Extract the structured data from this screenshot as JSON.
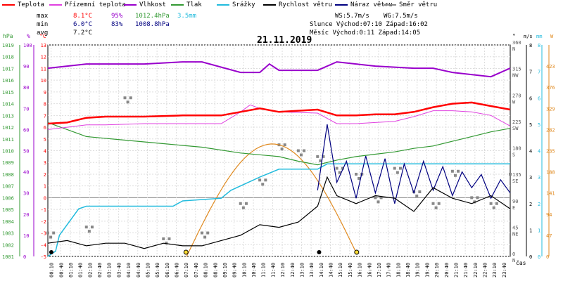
{
  "legend": [
    {
      "label": "Teplota",
      "color": "#ff0000"
    },
    {
      "label": "Přízemní teplota",
      "color": "#e040e0"
    },
    {
      "label": "Vlhkost",
      "color": "#9900cc"
    },
    {
      "label": "Tlak",
      "color": "#339933"
    },
    {
      "label": "Srážky",
      "color": "#22bbdd"
    },
    {
      "label": "Rychlost větru",
      "color": "#000000"
    },
    {
      "label": "Náraz větru",
      "color": "#000080"
    },
    {
      "label": "Směr větru",
      "color": "#888888"
    }
  ],
  "stats": {
    "max_label": "max",
    "max_temp": "8.1°C",
    "max_hum": "95%",
    "max_press": "1012.4hPa",
    "max_rain": "3.5mm",
    "min_label": "min",
    "min_temp": "6.0°C",
    "min_hum": "83%",
    "min_press": "1008.8hPa",
    "avg_label": "avg",
    "avg_temp": "7.2°C",
    "ws": "WS:5.7m/s",
    "wg": "WG:7.5m/s",
    "sun": "Slunce Východ:07:10  Západ:16:02",
    "moon": "Měsíc  Východ:0:11  Západ:14:05"
  },
  "colors": {
    "temp": "#ff0000",
    "feel": "#e040e0",
    "hum": "#9900cc",
    "press": "#339933",
    "rain": "#22bbdd",
    "wind": "#000000",
    "gust": "#000080",
    "dir": "#888888",
    "sun": "#e08a20"
  },
  "chart_data": {
    "type": "line",
    "title": "21.11.2019",
    "x_unit": "čas",
    "x_ticks": [
      "00:10",
      "00:40",
      "01:10",
      "01:40",
      "02:10",
      "02:40",
      "03:10",
      "03:40",
      "04:10",
      "04:40",
      "05:10",
      "05:40",
      "06:10",
      "06:40",
      "07:10",
      "07:40",
      "08:10",
      "08:40",
      "09:10",
      "09:40",
      "10:10",
      "10:40",
      "11:10",
      "11:40",
      "12:10",
      "12:40",
      "13:10",
      "13:40",
      "14:10",
      "14:40",
      "15:10",
      "15:40",
      "16:10",
      "16:40",
      "17:10",
      "17:40",
      "18:10",
      "18:40",
      "19:10",
      "19:40",
      "20:10",
      "20:40",
      "21:10",
      "21:40",
      "22:10",
      "22:40",
      "23:10",
      "23:40"
    ],
    "axes": {
      "pressure_hpa": {
        "label": "hPa",
        "ticks": [
          "1001",
          "1002",
          "1003",
          "1004",
          "1005",
          "1006",
          "1007",
          "1008",
          "1009",
          "1010",
          "1011",
          "1012",
          "1013",
          "1014",
          "1015",
          "1016",
          "1017",
          "1018",
          "1019"
        ]
      },
      "humidity_pct": {
        "label": "%",
        "ticks": [
          "0",
          "10",
          "20",
          "30",
          "40",
          "50",
          "60",
          "70",
          "80",
          "90",
          "100"
        ]
      },
      "temp_c": {
        "label": "°C",
        "ticks": [
          "-5",
          "-4",
          "-3",
          "-2",
          "-1",
          "0",
          "1",
          "2",
          "3",
          "4",
          "5",
          "6",
          "7",
          "8",
          "9",
          "10",
          "11",
          "12",
          "13"
        ]
      },
      "wind_dir_deg": {
        "label": "°",
        "ticks": [
          "0 N",
          "45 NE",
          "90 E",
          "135 SE",
          "180 S",
          "225 SW",
          "270 W",
          "315 NW",
          "360 N"
        ]
      },
      "wind_ms": {
        "label": "m/s",
        "ticks": [
          "0",
          "1",
          "2",
          "3",
          "4",
          "5",
          "6",
          "7",
          "8"
        ]
      },
      "rain_mm": {
        "label": "mm",
        "ticks": [
          "0",
          "1",
          "2",
          "3",
          "4",
          "5",
          "6",
          "7",
          "8"
        ]
      },
      "solar": {
        "label": "W",
        "ticks": [
          "0",
          "47",
          "94",
          "141",
          "188",
          "235",
          "282",
          "329",
          "376",
          "423"
        ]
      }
    },
    "series": [
      {
        "name": "Teplota",
        "unit": "°C",
        "x": [
          0,
          1,
          1.5,
          2,
          3,
          5,
          7,
          9,
          10,
          11,
          12,
          14,
          15,
          16,
          17,
          18,
          19,
          20,
          21,
          22,
          23,
          24
        ],
        "y": [
          6.3,
          6.4,
          6.6,
          6.8,
          6.9,
          6.9,
          7.0,
          7.0,
          7.3,
          7.6,
          7.3,
          7.5,
          7.0,
          7.0,
          7.1,
          7.1,
          7.3,
          7.7,
          8.0,
          8.1,
          7.8,
          7.5
        ]
      },
      {
        "name": "Přízemní teplota",
        "unit": "°C",
        "x": [
          0,
          1,
          2,
          3,
          5,
          7,
          9,
          10,
          10.5,
          11,
          12,
          14,
          15,
          16,
          17,
          18,
          19,
          20,
          21,
          22,
          23,
          24
        ],
        "y": [
          5.8,
          6.0,
          6.2,
          6.2,
          6.3,
          6.3,
          6.3,
          7.3,
          7.9,
          7.6,
          7.3,
          7.2,
          6.3,
          6.3,
          6.4,
          6.5,
          6.9,
          7.4,
          7.4,
          7.3,
          7.0,
          6.1
        ]
      },
      {
        "name": "Vlhkost",
        "unit": "%",
        "x": [
          0,
          1,
          2,
          5,
          7,
          8,
          10,
          11,
          11.5,
          12,
          14,
          15,
          16,
          17,
          19,
          20,
          21,
          23,
          24
        ],
        "y": [
          89,
          90,
          91,
          91,
          92,
          92,
          87,
          87,
          91,
          88,
          88,
          92,
          91,
          90,
          89,
          89,
          87,
          85,
          89
        ]
      },
      {
        "name": "Tlak",
        "unit": "hPa",
        "x": [
          0,
          1,
          2,
          4,
          6,
          8,
          10,
          12,
          13,
          14,
          15,
          16,
          17,
          18,
          19,
          20,
          21,
          22,
          23,
          24
        ],
        "y": [
          1012.4,
          1011.8,
          1011.2,
          1010.9,
          1010.6,
          1010.3,
          1009.8,
          1009.5,
          1009.1,
          1008.8,
          1009.2,
          1009.5,
          1009.7,
          1009.9,
          1010.2,
          1010.4,
          1010.8,
          1011.2,
          1011.6,
          1011.9
        ]
      },
      {
        "name": "Srážky",
        "unit": "mm",
        "x": [
          0,
          0.4,
          0.6,
          1.6,
          2,
          6.5,
          7,
          9,
          9.5,
          11,
          12,
          14,
          14.5,
          24
        ],
        "y": [
          0,
          0.2,
          0.8,
          1.8,
          1.9,
          1.9,
          2.1,
          2.2,
          2.5,
          3.0,
          3.3,
          3.3,
          3.5,
          3.5
        ]
      },
      {
        "name": "Rychlost větru",
        "unit": "m/s",
        "x": [
          0,
          1,
          2,
          3,
          4,
          5,
          6,
          7,
          8,
          9,
          10,
          11,
          12,
          13,
          14,
          14.5,
          15,
          16,
          17,
          18,
          19,
          20,
          21,
          22,
          23,
          24
        ],
        "y": [
          0.5,
          0.6,
          0.4,
          0.5,
          0.5,
          0.3,
          0.5,
          0.4,
          0.4,
          0.6,
          0.8,
          1.2,
          1.1,
          1.3,
          1.9,
          3.0,
          2.3,
          2.0,
          2.3,
          2.2,
          1.7,
          2.6,
          2.2,
          2.0,
          2.3,
          1.8
        ]
      },
      {
        "name": "Náraz větru",
        "unit": "m/s",
        "x": [
          14,
          14.5,
          15,
          15.5,
          16,
          16.5,
          17,
          17.5,
          18,
          18.5,
          19,
          19.5,
          20,
          20.5,
          21,
          21.5,
          22,
          22.5,
          23,
          23.5,
          24
        ],
        "y": [
          2.5,
          5.0,
          2.8,
          3.6,
          2.2,
          3.8,
          2.4,
          3.7,
          2.0,
          3.5,
          2.4,
          3.6,
          2.5,
          3.4,
          2.3,
          3.2,
          2.6,
          3.1,
          2.2,
          2.9,
          2.4
        ]
      },
      {
        "name": "Směr větru",
        "unit": "°",
        "x": [
          0,
          2,
          4,
          6,
          8,
          10,
          11,
          12,
          13,
          14,
          15,
          16,
          17,
          18,
          19,
          20,
          21,
          22,
          23,
          24
        ],
        "y": [
          40,
          50,
          270,
          30,
          40,
          90,
          130,
          190,
          180,
          170,
          150,
          140,
          100,
          150,
          110,
          90,
          145,
          100,
          90,
          140
        ]
      }
    ],
    "grid": true,
    "legend_position": "top"
  }
}
